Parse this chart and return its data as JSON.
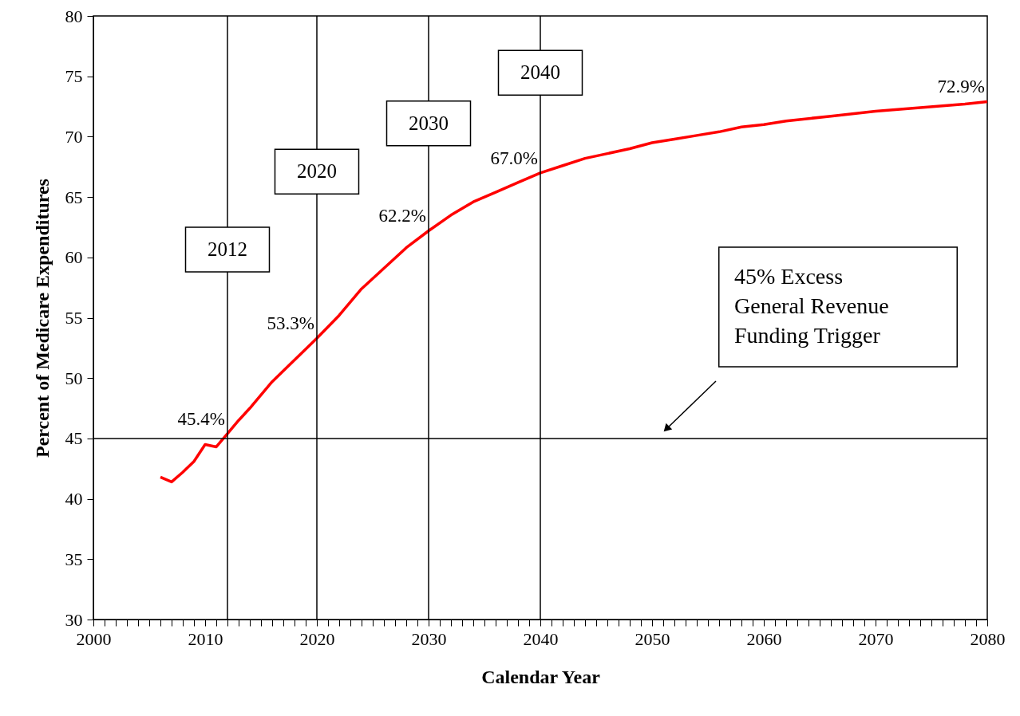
{
  "chart_data": {
    "type": "line",
    "xlabel": "Calendar Year",
    "ylabel": "Percent of Medicare Expenditures",
    "x": [
      2006,
      2007,
      2008,
      2009,
      2010,
      2011,
      2012,
      2013,
      2014,
      2016,
      2018,
      2020,
      2022,
      2024,
      2026,
      2028,
      2030,
      2032,
      2034,
      2036,
      2038,
      2040,
      2042,
      2044,
      2046,
      2048,
      2050,
      2052,
      2054,
      2056,
      2058,
      2060,
      2062,
      2066,
      2070,
      2074,
      2078,
      2080
    ],
    "series": [
      {
        "color": "#ff0000",
        "values": [
          41.8,
          41.4,
          42.2,
          43.1,
          44.5,
          44.3,
          45.4,
          46.5,
          47.5,
          49.7,
          51.5,
          53.3,
          55.2,
          57.4,
          59.1,
          60.8,
          62.2,
          63.5,
          64.6,
          65.4,
          66.2,
          67.0,
          67.6,
          68.2,
          68.6,
          69.0,
          69.5,
          69.8,
          70.1,
          70.4,
          70.8,
          71.0,
          71.3,
          71.7,
          72.1,
          72.4,
          72.7,
          72.9
        ],
        "value_labels": [
          null,
          null,
          null,
          null,
          null,
          null,
          "45.4%",
          null,
          null,
          null,
          null,
          "53.3%",
          null,
          null,
          null,
          null,
          "62.2%",
          null,
          null,
          null,
          null,
          "67.0%",
          null,
          null,
          null,
          null,
          null,
          null,
          null,
          null,
          null,
          null,
          null,
          null,
          null,
          null,
          null,
          "72.9%"
        ]
      }
    ],
    "xlim": [
      2000,
      2080
    ],
    "xticks": [
      2000,
      {
        "value": 2001,
        "label": null
      },
      {
        "value": 2002,
        "label": null
      },
      {
        "value": 2003,
        "label": null
      },
      {
        "value": 2004,
        "label": null
      },
      {
        "value": 2005,
        "label": null
      },
      {
        "value": 2006,
        "label": null
      },
      {
        "value": 2007,
        "label": null
      },
      {
        "value": 2008,
        "label": null
      },
      {
        "value": 2009,
        "label": null
      },
      2010,
      {
        "value": 2011,
        "label": null
      },
      {
        "value": 2012,
        "label": null
      },
      {
        "value": 2013,
        "label": null
      },
      {
        "value": 2014,
        "label": null
      },
      {
        "value": 2015,
        "label": null
      },
      {
        "value": 2016,
        "label": null
      },
      {
        "value": 2017,
        "label": null
      },
      {
        "value": 2018,
        "label": null
      },
      {
        "value": 2019,
        "label": null
      },
      2020,
      {
        "value": 2021,
        "label": null
      },
      {
        "value": 2022,
        "label": null
      },
      {
        "value": 2023,
        "label": null
      },
      {
        "value": 2024,
        "label": null
      },
      {
        "value": 2025,
        "label": null
      },
      {
        "value": 2026,
        "label": null
      },
      {
        "value": 2027,
        "label": null
      },
      {
        "value": 2028,
        "label": null
      },
      {
        "value": 2029,
        "label": null
      },
      2030,
      {
        "value": 2031,
        "label": null
      },
      {
        "value": 2032,
        "label": null
      },
      {
        "value": 2033,
        "label": null
      },
      {
        "value": 2034,
        "label": null
      },
      {
        "value": 2035,
        "label": null
      },
      {
        "value": 2036,
        "label": null
      },
      {
        "value": 2037,
        "label": null
      },
      {
        "value": 2038,
        "label": null
      },
      {
        "value": 2039,
        "label": null
      },
      2040,
      {
        "value": 2041,
        "label": null
      },
      {
        "value": 2042,
        "label": null
      },
      {
        "value": 2043,
        "label": null
      },
      {
        "value": 2044,
        "label": null
      },
      {
        "value": 2045,
        "label": null
      },
      {
        "value": 2046,
        "label": null
      },
      {
        "value": 2047,
        "label": null
      },
      {
        "value": 2048,
        "label": null
      },
      {
        "value": 2049,
        "label": null
      },
      2050,
      {
        "value": 2051,
        "label": null
      },
      {
        "value": 2052,
        "label": null
      },
      {
        "value": 2053,
        "label": null
      },
      {
        "value": 2054,
        "label": null
      },
      {
        "value": 2055,
        "label": null
      },
      {
        "value": 2056,
        "label": null
      },
      {
        "value": 2057,
        "label": null
      },
      {
        "value": 2058,
        "label": null
      },
      {
        "value": 2059,
        "label": null
      },
      2060,
      {
        "value": 2061,
        "label": null
      },
      {
        "value": 2062,
        "label": null
      },
      {
        "value": 2063,
        "label": null
      },
      {
        "value": 2064,
        "label": null
      },
      {
        "value": 2065,
        "label": null
      },
      {
        "value": 2066,
        "label": null
      },
      {
        "value": 2067,
        "label": null
      },
      {
        "value": 2068,
        "label": null
      },
      {
        "value": 2069,
        "label": null
      },
      2070,
      {
        "value": 2071,
        "label": null
      },
      {
        "value": 2072,
        "label": null
      },
      {
        "value": 2073,
        "label": null
      },
      {
        "value": 2074,
        "label": null
      },
      {
        "value": 2075,
        "label": null
      },
      {
        "value": 2076,
        "label": null
      },
      {
        "value": 2077,
        "label": null
      },
      {
        "value": 2078,
        "label": null
      },
      {
        "value": 2079,
        "label": null
      },
      2080
    ],
    "ylim": [
      30,
      80
    ],
    "yticks": [
      30,
      35,
      40,
      45,
      50,
      55,
      60,
      65,
      70,
      75,
      80
    ],
    "ref_lines": [
      {
        "axis": "x",
        "value": 2012,
        "label": "2012"
      },
      {
        "axis": "x",
        "value": 2020,
        "label": "2020"
      },
      {
        "axis": "x",
        "value": 2030,
        "label": "2030"
      },
      {
        "axis": "x",
        "value": 2040,
        "label": "2040"
      },
      {
        "axis": "y",
        "value": 45
      }
    ],
    "annotations": [
      "45% Excess\nGeneral Revenue\nFunding Trigger"
    ],
    "grid": false,
    "marker": "none",
    "line_style": "solid"
  }
}
